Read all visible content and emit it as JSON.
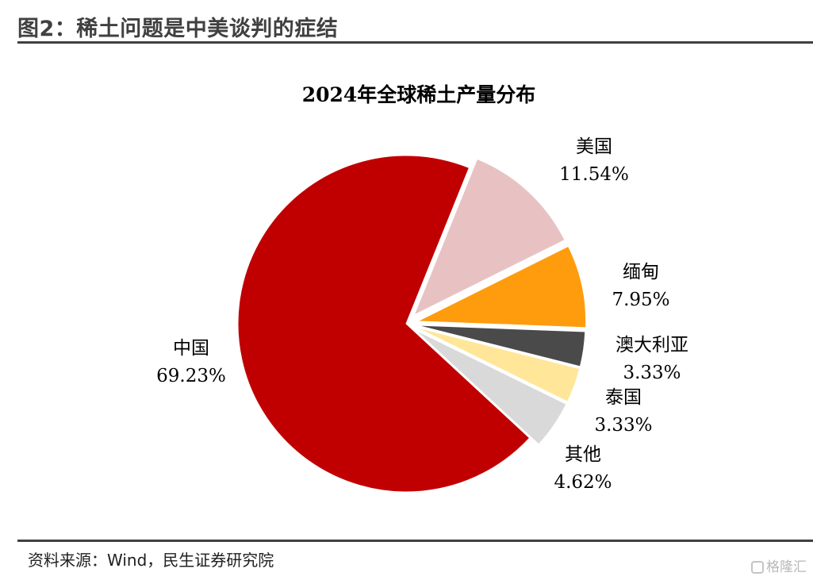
{
  "header": {
    "figure_title": "图2：稀土问题是中美谈判的症结"
  },
  "footer": {
    "source": "资料来源：Wind，民生证券研究院",
    "watermark": "格隆汇",
    "watermark_icon": "brand-logo-icon"
  },
  "chart_data": {
    "type": "pie",
    "title": "2024年全球稀土产量分布",
    "start_angle_deg": 22,
    "direction": "clockwise",
    "exploded": true,
    "legend": "none",
    "slices": [
      {
        "name": "美国",
        "value": 11.54,
        "label": "11.54%",
        "color": "#E8C2C3"
      },
      {
        "name": "缅甸",
        "value": 7.95,
        "label": "7.95%",
        "color": "#FF9C0D"
      },
      {
        "name": "澳大利亚",
        "value": 3.33,
        "label": "3.33%",
        "color": "#4A4A4A"
      },
      {
        "name": "泰国",
        "value": 3.33,
        "label": "3.33%",
        "color": "#FFE699"
      },
      {
        "name": "其他",
        "value": 4.62,
        "label": "4.62%",
        "color": "#D9D9D9"
      },
      {
        "name": "中国",
        "value": 69.23,
        "label": "69.23%",
        "color": "#C00000"
      }
    ]
  }
}
